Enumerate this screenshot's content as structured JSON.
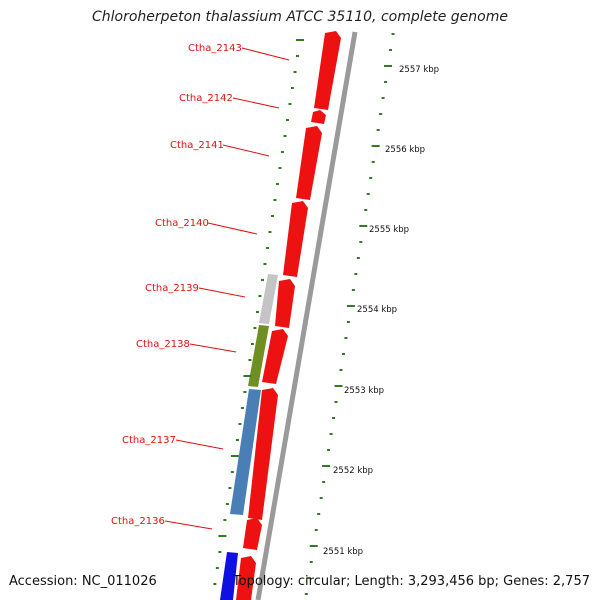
{
  "title": "Chloroherpeton thalassium ATCC 35110, complete genome",
  "footer": {
    "accession": "Accession: NC_011026",
    "topology": "Topology: circular; Length: 3,293,456 bp; Genes: 2,757"
  },
  "colors": {
    "forward_gene": "#ee1111",
    "label": "#e01010",
    "tick": "#2e7d1e",
    "backbone": "#9a9a9a",
    "gray_gene": "#c4c4c4",
    "olive_gene": "#6f8f23",
    "steel_gene": "#4a7fb6",
    "blue_gene": "#1010e0"
  },
  "scale_labels": [
    "2557 kbp",
    "2556 kbp",
    "2555 kbp",
    "2554 kbp",
    "2553 kbp",
    "2552 kbp",
    "2551 kbp"
  ],
  "gene_labels": [
    "Ctha_2143",
    "Ctha_2142",
    "Ctha_2141",
    "Ctha_2140",
    "Ctha_2139",
    "Ctha_2138",
    "Ctha_2137",
    "Ctha_2136"
  ]
}
